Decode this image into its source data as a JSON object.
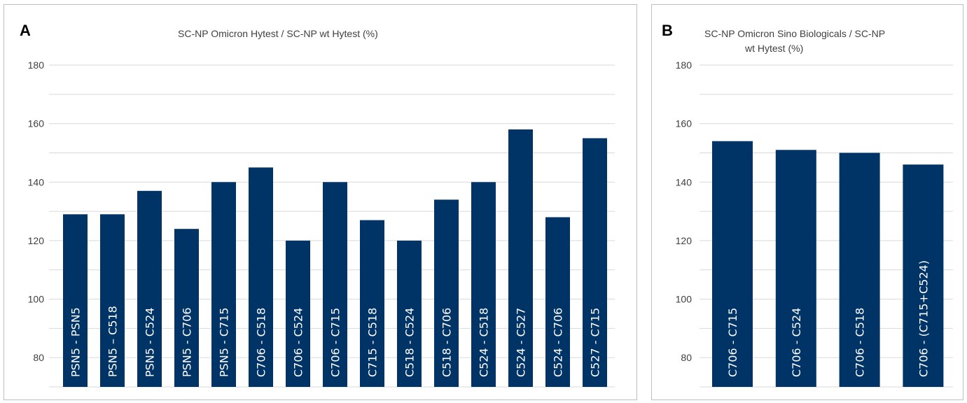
{
  "chart_data": [
    {
      "type": "bar",
      "panel_label": "A",
      "title": "SC-NP Omicron Hytest / SC-NP wt Hytest (%)",
      "categories": [
        "PSN5 - PSN5",
        "PSN5 – C518",
        "PSN5 - C524",
        "PSN5 - C706",
        "PSN5 - C715",
        "C706 - C518",
        "C706 - C524",
        "C706 - C715",
        "C715 - C518",
        "C518 - C524",
        "C518 - C706",
        "C524 - C518",
        "C524 - C527",
        "C524 - C706",
        "C527 - C715"
      ],
      "values": [
        129,
        129,
        137,
        124,
        140,
        145,
        120,
        140,
        127,
        120,
        134,
        140,
        158,
        128,
        155
      ],
      "yticks": [
        80,
        100,
        120,
        140,
        160,
        180
      ],
      "ylim": [
        70,
        180
      ],
      "grid": true,
      "bar_color": "#003366"
    },
    {
      "type": "bar",
      "panel_label": "B",
      "title_lines": [
        "SC-NP Omicron Sino Biologicals / SC-NP",
        "wt Hytest (%)"
      ],
      "categories": [
        "C706 - C715",
        "C706 - C524",
        "C706 - C518",
        "C706 - (C715+C524)"
      ],
      "values": [
        154,
        151,
        150,
        146
      ],
      "yticks": [
        80,
        100,
        120,
        140,
        160,
        180
      ],
      "ylim": [
        70,
        180
      ],
      "grid": true,
      "bar_color": "#003366"
    }
  ]
}
